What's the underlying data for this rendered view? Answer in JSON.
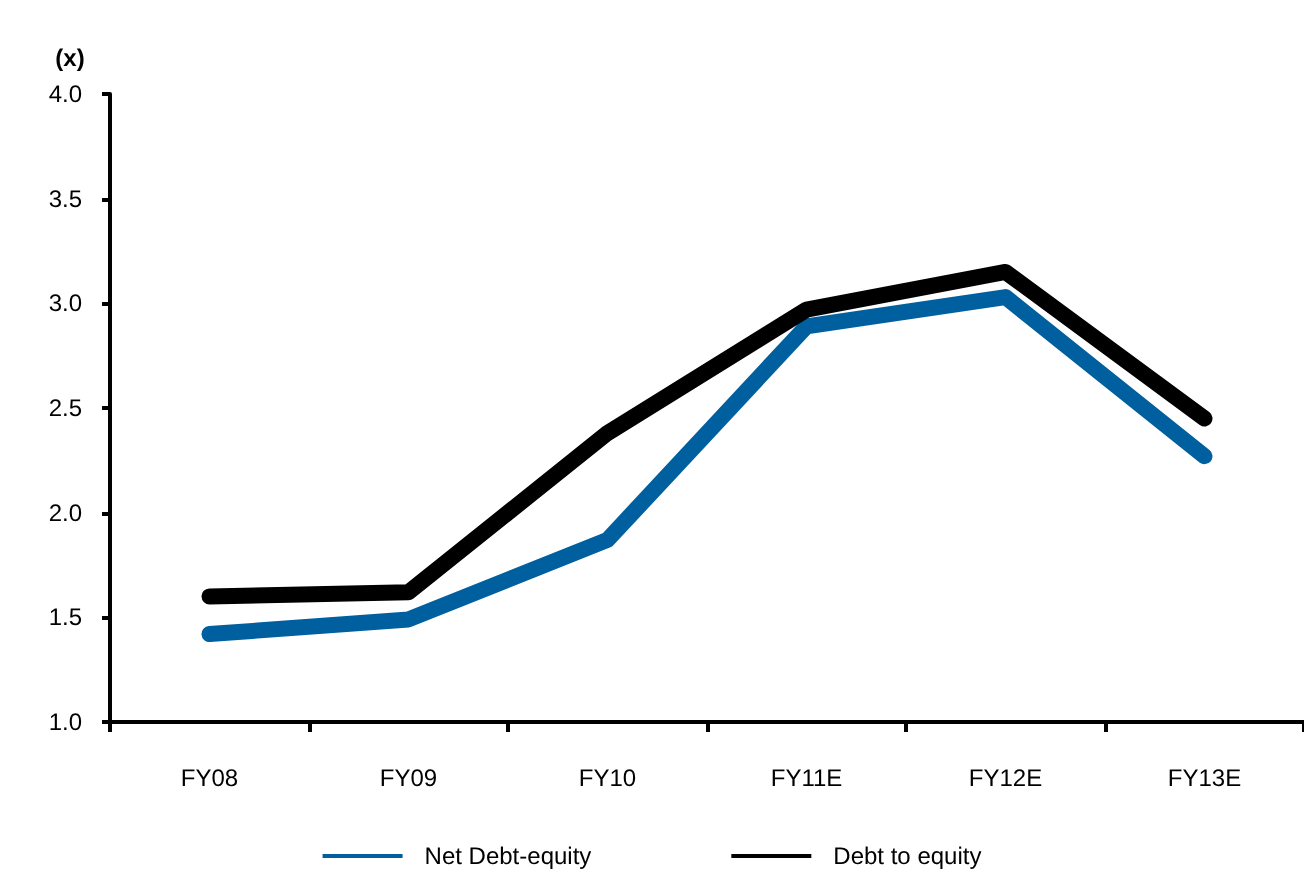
{
  "chart_data": {
    "type": "line",
    "ylabel": "(x)",
    "categories": [
      "FY08",
      "FY09",
      "FY10",
      "FY11E",
      "FY12E",
      "FY13E"
    ],
    "series": [
      {
        "name": "Net Debt-equity",
        "color": "#005f9e",
        "values": [
          1.42,
          1.49,
          1.87,
          2.89,
          3.03,
          2.27
        ]
      },
      {
        "name": "Debt to equity",
        "color": "#000000",
        "values": [
          1.6,
          1.62,
          2.38,
          2.97,
          3.15,
          2.45
        ]
      }
    ],
    "ylim": [
      1.0,
      4.0
    ],
    "yticks": [
      {
        "value": 1.0,
        "label": "1.0"
      },
      {
        "value": 1.5,
        "label": "1.5"
      },
      {
        "value": 2.0,
        "label": "2.0"
      },
      {
        "value": 2.5,
        "label": "2.5"
      },
      {
        "value": 3.0,
        "label": "3.0"
      },
      {
        "value": 3.5,
        "label": "3.5"
      },
      {
        "value": 4.0,
        "label": "4.0"
      }
    ],
    "grid": false,
    "legend": "bottom",
    "marker": "none",
    "line_style": "solid"
  }
}
